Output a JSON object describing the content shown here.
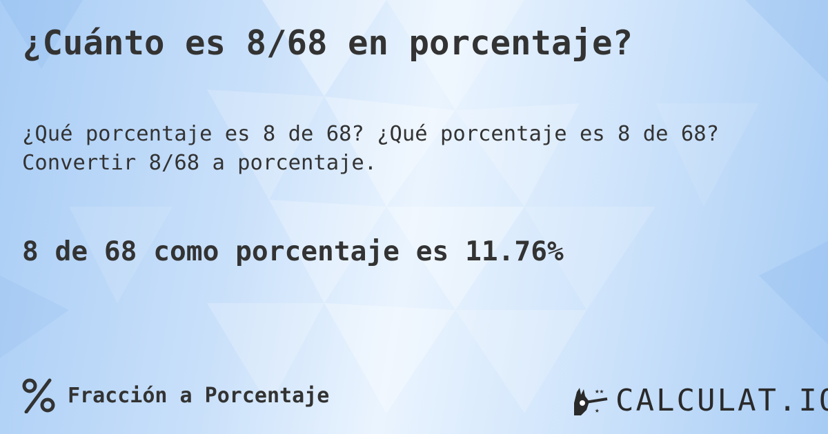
{
  "title": "¿Cuánto es 8/68 en porcentaje?",
  "subtitle_line1": "¿Qué porcentaje es 8 de 68? ¿Qué porcentaje es 8 de 68?",
  "subtitle_line2": "Convertir 8/68 a porcentaje.",
  "result": "8 de 68 como porcentaje es 11.76%",
  "footer": {
    "icon": "percent-icon",
    "label": "Fracción a Porcentaje"
  },
  "logo": {
    "text": "CALCULAT.IO",
    "icon": "magic-wand-hand-icon"
  },
  "colors": {
    "text": "#333333",
    "background": "#c9e0fa"
  }
}
